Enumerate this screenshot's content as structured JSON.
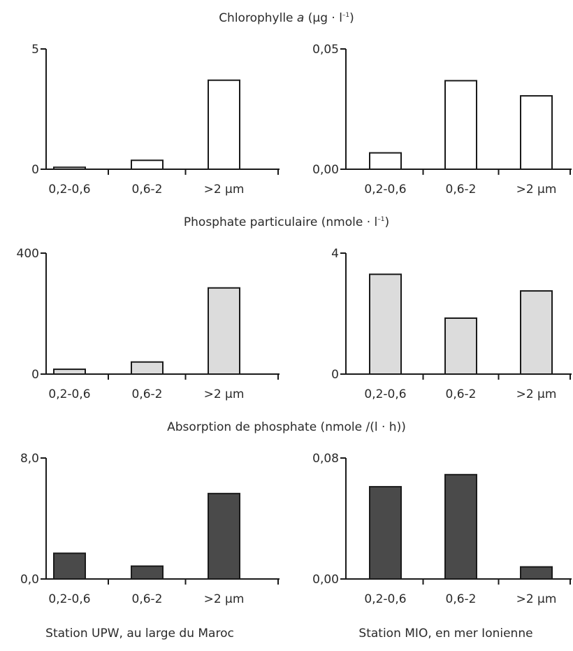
{
  "titles": {
    "chl_prefix": "Chlorophylle ",
    "chl_italic": "a",
    "chl_unit": " (µg · l",
    "chl_sup": "–1",
    "chl_close": ")",
    "phos_prefix": "Phosphate particulaire (nmole · l",
    "phos_sup": "–1",
    "phos_close": ")",
    "abs": "Absorption de phosphate (nmole /(l · h))"
  },
  "stations": {
    "left": "Station UPW, au large du Maroc",
    "right": "Station MIO, en mer Ionienne"
  },
  "colors": {
    "white_bar": "#ffffff",
    "light_bar": "#dcdcdc",
    "dark_bar": "#4a4a4a",
    "axis": "#1a1a1a"
  },
  "chart_data": [
    {
      "type": "bar",
      "row": "chlorophylle",
      "station": "UPW",
      "categories": [
        "0,2-0,6",
        "0,6-2",
        ">2 µm"
      ],
      "values": [
        0.08,
        0.37,
        3.7
      ],
      "ylim": [
        0,
        5
      ],
      "yticks": [
        "0",
        "5"
      ],
      "fill": "white"
    },
    {
      "type": "bar",
      "row": "chlorophylle",
      "station": "MIO",
      "categories": [
        "0,2-0,6",
        "0,6-2",
        ">2 µm"
      ],
      "values": [
        0.0068,
        0.0368,
        0.0305
      ],
      "ylim": [
        0,
        0.05
      ],
      "yticks": [
        "0,00",
        "0,05"
      ],
      "fill": "white"
    },
    {
      "type": "bar",
      "row": "phosphate",
      "station": "UPW",
      "categories": [
        "0,2-0,6",
        "0,6-2",
        ">2 µm"
      ],
      "values": [
        16,
        40,
        285
      ],
      "ylim": [
        0,
        400
      ],
      "yticks": [
        "0",
        "400"
      ],
      "fill": "light"
    },
    {
      "type": "bar",
      "row": "phosphate",
      "station": "MIO",
      "categories": [
        "0,2-0,6",
        "0,6-2",
        ">2 µm"
      ],
      "values": [
        3.3,
        1.85,
        2.75
      ],
      "ylim": [
        0,
        4
      ],
      "yticks": [
        "0",
        "4"
      ],
      "fill": "light"
    },
    {
      "type": "bar",
      "row": "absorption",
      "station": "UPW",
      "categories": [
        "0,2-0,6",
        "0,6-2",
        ">2 µm"
      ],
      "values": [
        1.7,
        0.85,
        5.65
      ],
      "ylim": [
        0,
        8
      ],
      "yticks": [
        "0,0",
        "8,0"
      ],
      "fill": "dark"
    },
    {
      "type": "bar",
      "row": "absorption",
      "station": "MIO",
      "categories": [
        "0,2-0,6",
        "0,6-2",
        ">2 µm"
      ],
      "values": [
        0.061,
        0.069,
        0.008
      ],
      "ylim": [
        0,
        0.08
      ],
      "yticks": [
        "0,00",
        "0,08"
      ],
      "fill": "dark"
    }
  ]
}
